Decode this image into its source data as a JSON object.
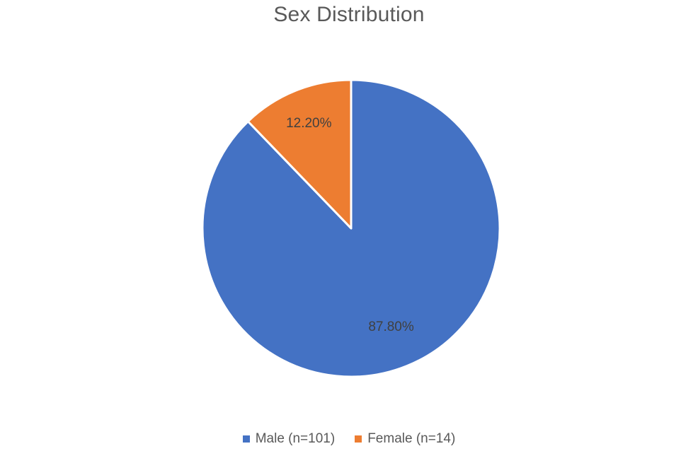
{
  "chart_data": {
    "type": "pie",
    "title": "Sex Distribution",
    "categories": [
      "Male (n=101)",
      "Female (n=14)"
    ],
    "values": [
      87.8,
      12.2
    ],
    "data_labels": [
      "87.80%",
      "12.20%"
    ],
    "colors": [
      "#4472c4",
      "#ed7d31"
    ],
    "start_angle_deg": 0,
    "direction": "clockwise",
    "legend_position": "bottom"
  }
}
